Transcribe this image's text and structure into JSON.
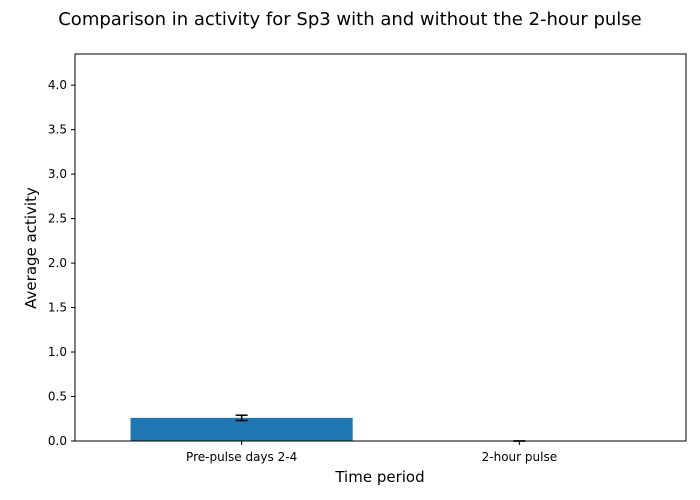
{
  "chart_data": {
    "type": "bar",
    "title": "Comparison in activity for Sp3 with and without the 2-hour pulse",
    "xlabel": "Time period",
    "ylabel": "Average activity",
    "categories": [
      "Pre-pulse days 2-4",
      "2-hour pulse"
    ],
    "values": [
      0.26,
      0.0
    ],
    "errors": [
      0.03,
      0.0
    ],
    "ylim": [
      0,
      4.35
    ],
    "yticks": [
      "0.0",
      "0.5",
      "1.0",
      "1.5",
      "2.0",
      "2.5",
      "3.0",
      "3.5",
      "4.0"
    ],
    "grid": false,
    "legend": "none",
    "bar_color": "#1f77b4"
  }
}
